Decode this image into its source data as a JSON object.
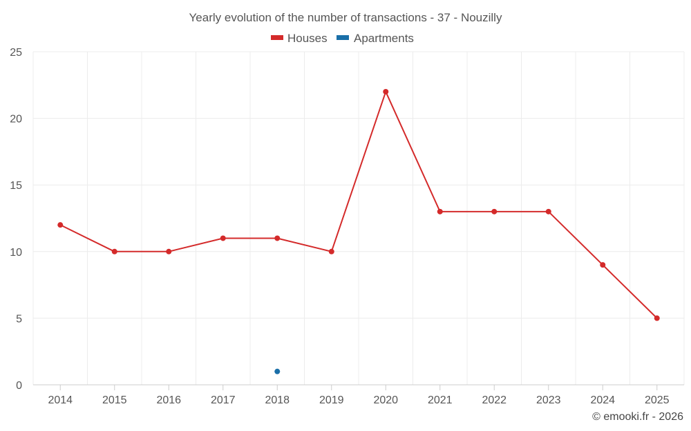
{
  "chart_data": {
    "type": "line",
    "title": "Yearly evolution of the number of transactions - 37 - Nouzilly",
    "categories": [
      "2014",
      "2015",
      "2016",
      "2017",
      "2018",
      "2019",
      "2020",
      "2021",
      "2022",
      "2023",
      "2024",
      "2025"
    ],
    "series": [
      {
        "name": "Houses",
        "color": "#d42a2a",
        "values": [
          12,
          10,
          10,
          11,
          11,
          10,
          22,
          13,
          13,
          13,
          9,
          5
        ]
      },
      {
        "name": "Apartments",
        "color": "#1a6fa8",
        "values": [
          null,
          null,
          null,
          null,
          1,
          null,
          null,
          null,
          null,
          null,
          null,
          null
        ]
      }
    ],
    "y_ticks": [
      "0",
      "5",
      "10",
      "15",
      "20",
      "25"
    ],
    "ylim": [
      0,
      25
    ],
    "xlabel": "",
    "ylabel": "",
    "grid": true,
    "legend_position": "top-center"
  },
  "credit": "© emooki.fr - 2026"
}
